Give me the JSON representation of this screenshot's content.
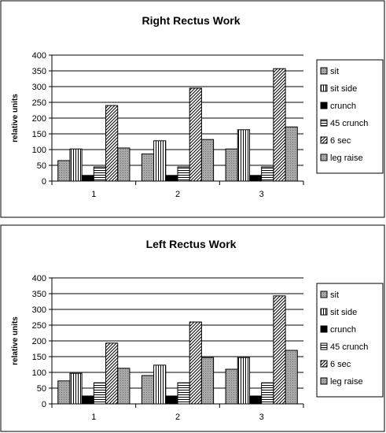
{
  "chart_data": [
    {
      "type": "bar",
      "title": "Right Rectus Work",
      "xlabel": "",
      "ylabel": "relative units",
      "categories": [
        "1",
        "2",
        "3"
      ],
      "ylim": [
        0,
        400
      ],
      "yticks": [
        "0",
        "50",
        "100",
        "150",
        "200",
        "250",
        "300",
        "350",
        "400"
      ],
      "grid": true,
      "legend_position": "right",
      "series": [
        {
          "name": "sit",
          "values": [
            65,
            86,
            102
          ],
          "pattern": "dots",
          "color": "#a0a0a0"
        },
        {
          "name": "sit side",
          "values": [
            102,
            128,
            163
          ],
          "pattern": "vlines",
          "color": "#ffffff"
        },
        {
          "name": "crunch",
          "values": [
            18,
            18,
            18
          ],
          "pattern": "solid",
          "color": "#000000"
        },
        {
          "name": "45 crunch",
          "values": [
            45,
            45,
            45
          ],
          "pattern": "hlines",
          "color": "#ffffff"
        },
        {
          "name": "6 sec",
          "values": [
            240,
            295,
            357
          ],
          "pattern": "diag",
          "color": "#ffffff"
        },
        {
          "name": "leg raise",
          "values": [
            105,
            132,
            172
          ],
          "pattern": "dots",
          "color": "#a0a0a0"
        }
      ]
    },
    {
      "type": "bar",
      "title": "Left Rectus Work",
      "xlabel": "",
      "ylabel": "relative units",
      "categories": [
        "1",
        "2",
        "3"
      ],
      "ylim": [
        0,
        400
      ],
      "yticks": [
        "0",
        "50",
        "100",
        "150",
        "200",
        "250",
        "300",
        "350",
        "400"
      ],
      "grid": true,
      "legend_position": "right",
      "series": [
        {
          "name": "sit",
          "values": [
            73,
            90,
            110
          ],
          "pattern": "dots",
          "color": "#a0a0a0"
        },
        {
          "name": "sit side",
          "values": [
            97,
            123,
            147
          ],
          "pattern": "vlines",
          "color": "#ffffff"
        },
        {
          "name": "crunch",
          "values": [
            25,
            25,
            25
          ],
          "pattern": "solid",
          "color": "#000000"
        },
        {
          "name": "45 crunch",
          "values": [
            67,
            67,
            67
          ],
          "pattern": "hlines",
          "color": "#ffffff"
        },
        {
          "name": "6 sec",
          "values": [
            193,
            260,
            343
          ],
          "pattern": "diag",
          "color": "#ffffff"
        },
        {
          "name": "leg raise",
          "values": [
            113,
            147,
            170
          ],
          "pattern": "dots",
          "color": "#a0a0a0"
        }
      ]
    }
  ]
}
